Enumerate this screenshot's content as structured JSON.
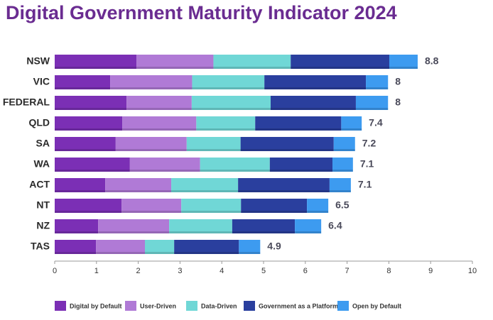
{
  "chart_data": {
    "type": "stacked-bar-horizontal",
    "title": "Digital Government Maturity Indicator 2024",
    "categories": [
      "NSW",
      "VIC",
      "FEDERAL",
      "QLD",
      "SA",
      "WA",
      "ACT",
      "NT",
      "NZ",
      "TAS"
    ],
    "series": [
      {
        "name": "Digital by Default",
        "color": "#7b2fb5",
        "values": [
          1.96,
          1.33,
          1.72,
          1.62,
          1.46,
          1.8,
          1.21,
          1.6,
          1.04,
          0.99
        ]
      },
      {
        "name": "User-Driven",
        "color": "#b07ad6",
        "values": [
          1.84,
          1.96,
          1.56,
          1.77,
          1.7,
          1.68,
          1.58,
          1.43,
          1.7,
          1.17
        ]
      },
      {
        "name": "Data-Driven",
        "color": "#70d7d6",
        "values": [
          1.85,
          1.73,
          1.89,
          1.41,
          1.29,
          1.67,
          1.6,
          1.43,
          1.51,
          0.7
        ]
      },
      {
        "name": "Government as a Platform",
        "color": "#2a3f9e",
        "values": [
          2.36,
          2.43,
          2.04,
          2.06,
          2.23,
          1.5,
          2.19,
          1.58,
          1.5,
          1.55
        ]
      },
      {
        "name": "Open by Default",
        "color": "#3d9bf0",
        "values": [
          0.68,
          0.53,
          0.77,
          0.49,
          0.51,
          0.49,
          0.51,
          0.51,
          0.63,
          0.51
        ]
      }
    ],
    "totals": [
      8.8,
      8,
      8,
      7.4,
      7.2,
      7.1,
      7.1,
      6.5,
      6.4,
      4.9
    ],
    "xlim": [
      0,
      10
    ],
    "xticks": [
      0,
      1,
      2,
      3,
      4,
      5,
      6,
      7,
      8,
      9,
      10
    ],
    "legend": "bottom"
  }
}
